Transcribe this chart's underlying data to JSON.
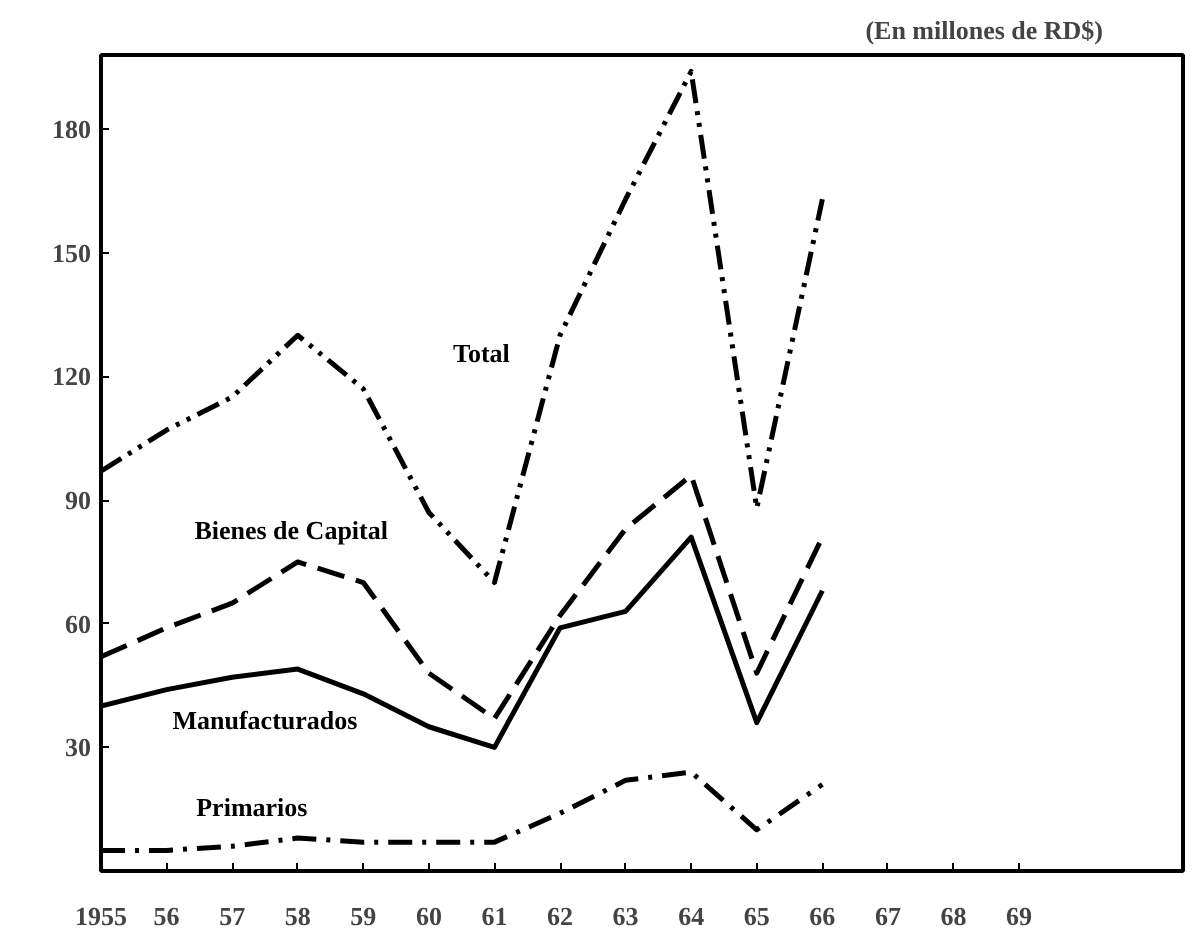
{
  "chart_data": {
    "type": "line",
    "annotations": [
      "(En millones de RD$)"
    ],
    "x": [
      1955,
      1956,
      1957,
      1958,
      1959,
      1960,
      1961,
      1962,
      1963,
      1964,
      1965,
      1966
    ],
    "series": [
      {
        "name": "Total",
        "color": "#000000",
        "line_style": "dashdotdot",
        "values": [
          97,
          107,
          115,
          130,
          117,
          87,
          70,
          130,
          163,
          194,
          88,
          163
        ]
      },
      {
        "name": "Bienes de Capital",
        "color": "#000000",
        "line_style": "dashed",
        "values": [
          52,
          59,
          65,
          75,
          70,
          48,
          37,
          62,
          83,
          96,
          48,
          81
        ]
      },
      {
        "name": "Manufacturados",
        "color": "#000000",
        "line_style": "solid",
        "values": [
          40,
          44,
          47,
          49,
          43,
          35,
          30,
          59,
          63,
          81,
          36,
          68
        ]
      },
      {
        "name": "Primarios",
        "color": "#000000",
        "line_style": "dashdot",
        "values": [
          5,
          5,
          6,
          8,
          7,
          7,
          7,
          14,
          22,
          24,
          10,
          21
        ]
      }
    ],
    "xlim": [
      1955,
      1971.5
    ],
    "ylim": [
      0,
      198
    ],
    "xticks": [
      1955,
      {
        "value": 1956,
        "label": "56"
      },
      {
        "value": 1957,
        "label": "57"
      },
      {
        "value": 1958,
        "label": "58"
      },
      {
        "value": 1959,
        "label": "59"
      },
      {
        "value": 1960,
        "label": "60"
      },
      {
        "value": 1961,
        "label": "61"
      },
      {
        "value": 1962,
        "label": "62"
      },
      {
        "value": 1963,
        "label": "63"
      },
      {
        "value": 1964,
        "label": "64"
      },
      {
        "value": 1965,
        "label": "65"
      },
      {
        "value": 1966,
        "label": "66"
      },
      {
        "value": 1967,
        "label": "67"
      },
      {
        "value": 1968,
        "label": "68"
      },
      {
        "value": 1969,
        "label": "69"
      }
    ],
    "yticks": [
      30,
      60,
      90,
      120,
      150,
      180
    ],
    "grid": false,
    "marker": "none"
  }
}
